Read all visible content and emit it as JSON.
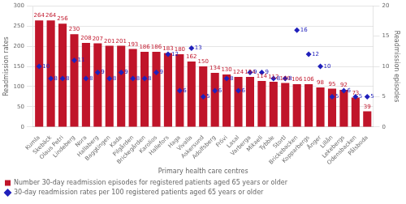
{
  "chart_data": {
    "type": "bar",
    "xlabel": "Primary health care centres",
    "ylabel": "Readmission rates",
    "y2label": "Readmission episodes",
    "categories": [
      "Kumla",
      "Skebäck",
      "Olaus Petri",
      "Lindeberg",
      "Nora",
      "Hallaberg",
      "Baggtingen",
      "Kada",
      "Pilgården",
      "Brickegården",
      "Karolios",
      "Hallefors",
      "Haga",
      "Vivalla",
      "Askersund",
      "Adolfsberg",
      "Frövi",
      "Lasal",
      "Varberga",
      "Mikaeli",
      "Tybble",
      "Stortl",
      "Brickebacken",
      "Kopparbergs",
      "Ånger",
      "Lillån",
      "Lekebergs",
      "Odensbacken",
      "Pålsboda"
    ],
    "series": [
      {
        "name": "Number 30-day readmission episodes for registered patients aged 65 years or older",
        "type": "bar",
        "color": "#c0152a",
        "values": [
          264,
          264,
          256,
          230,
          208,
          207,
          201,
          201,
          193,
          186,
          186,
          183,
          180,
          162,
          150,
          134,
          130,
          124,
          124,
          114,
          112,
          109,
          106,
          106,
          98,
          95,
          92,
          73,
          39
        ]
      },
      {
        "name": "30-day readmission rates per 100 registered patients aged 65 years or older",
        "type": "line",
        "axis": "y2",
        "color": "#2020bb",
        "marker": "diamond",
        "line_style": "none",
        "values": [
          10,
          8,
          8,
          11,
          8,
          9,
          8,
          9,
          8,
          8,
          9,
          12,
          6,
          13,
          5,
          6,
          8,
          6,
          9,
          9,
          8,
          8,
          16,
          12,
          10,
          5,
          6,
          5,
          5
        ]
      }
    ],
    "ylim": [
      0,
      300
    ],
    "yticks": [
      0,
      50,
      100,
      150,
      200,
      250,
      300
    ],
    "y2lim": [
      0,
      20
    ],
    "y2ticks": [
      0,
      5,
      10,
      15,
      20
    ],
    "grid": true,
    "legend": "bottom left",
    "data_labels": true
  }
}
